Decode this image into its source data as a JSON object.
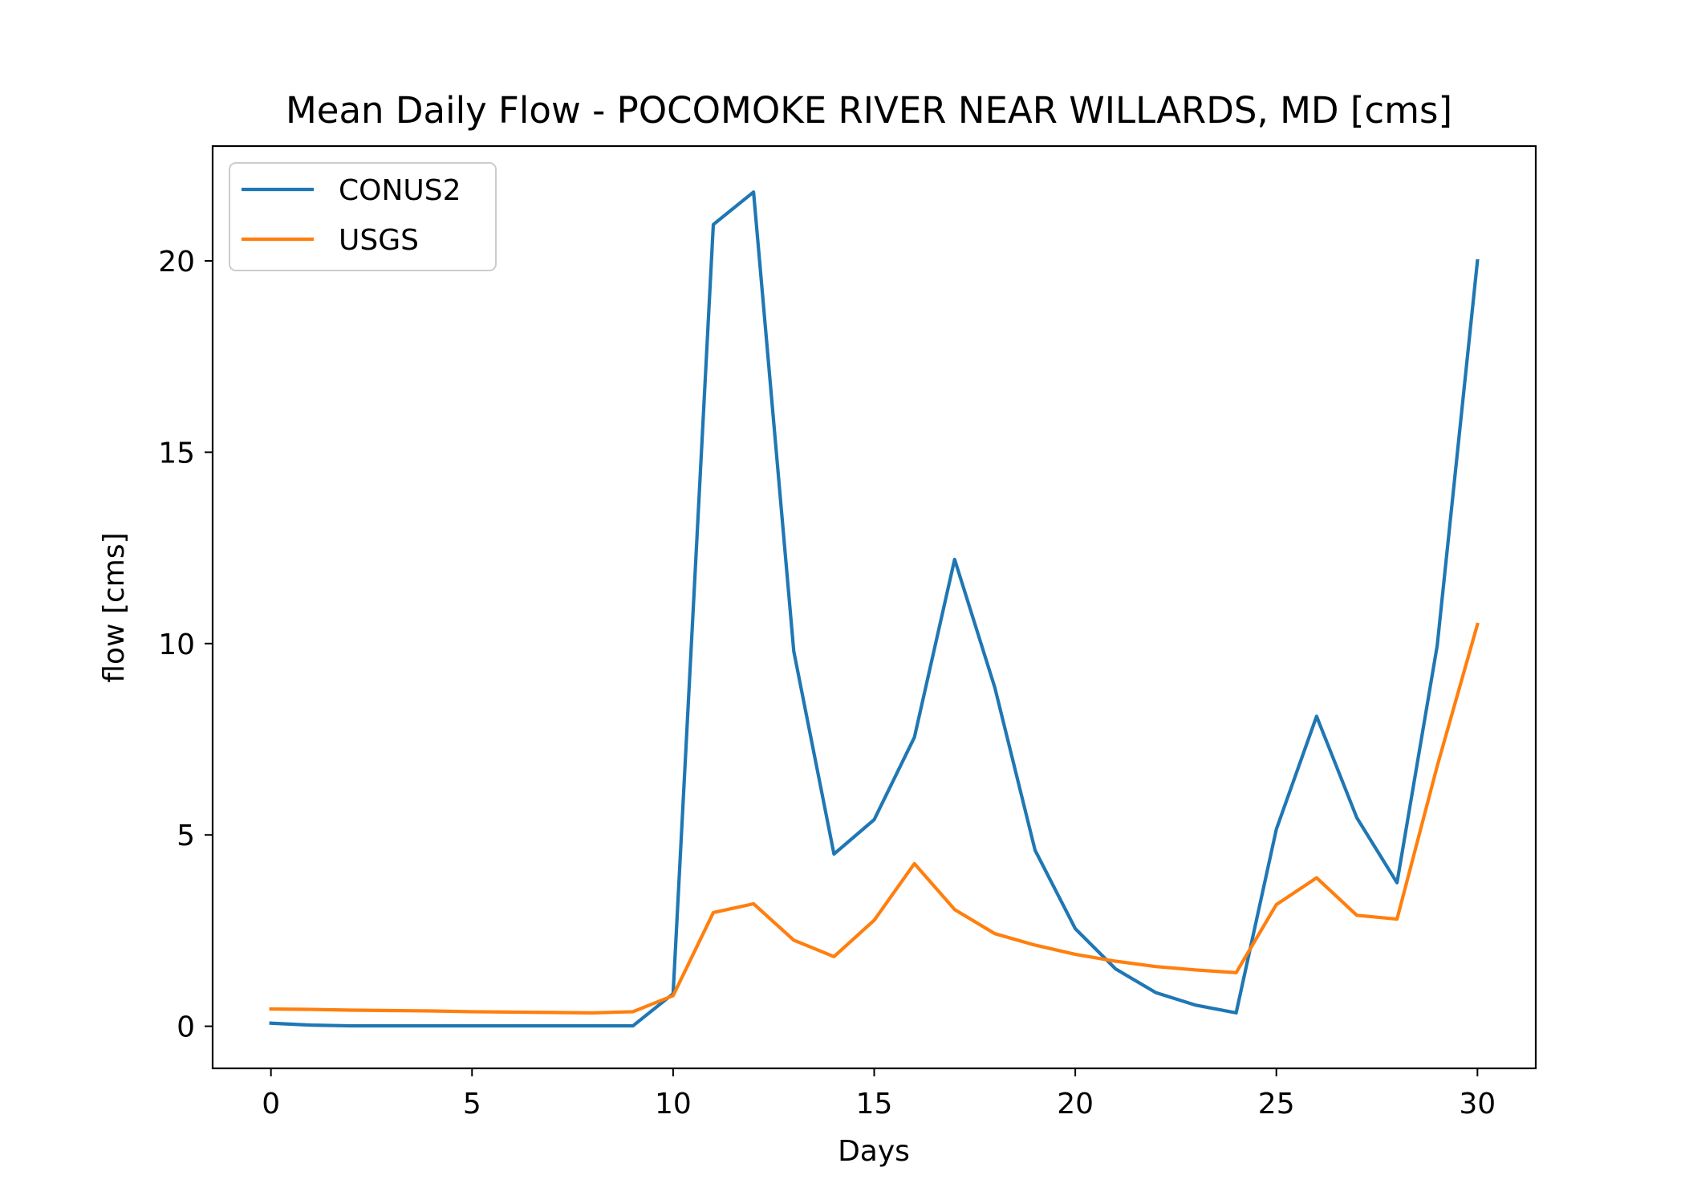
{
  "chart_data": {
    "type": "line",
    "title": "Mean Daily Flow - POCOMOKE RIVER NEAR WILLARDS, MD [cms]",
    "xlabel": "Days",
    "ylabel": "flow [cms]",
    "xlim": [
      -1.45,
      31.45
    ],
    "ylim": [
      -1.1,
      23.0
    ],
    "xticks": [
      0,
      5,
      10,
      15,
      20,
      25,
      30
    ],
    "yticks": [
      0,
      5,
      10,
      15,
      20
    ],
    "grid": false,
    "legend_position": "top-left",
    "x": [
      0,
      1,
      2,
      3,
      4,
      5,
      6,
      7,
      8,
      9,
      10,
      11,
      12,
      13,
      14,
      15,
      16,
      17,
      18,
      19,
      20,
      21,
      22,
      23,
      24,
      25,
      26,
      27,
      28,
      29,
      30
    ],
    "series": [
      {
        "name": "CONUS2",
        "color": "#1f77b4",
        "values": [
          0.08,
          0.03,
          0.01,
          0.01,
          0.01,
          0.01,
          0.01,
          0.01,
          0.01,
          0.01,
          0.85,
          20.95,
          21.8,
          9.8,
          4.5,
          5.4,
          7.55,
          12.2,
          8.85,
          4.6,
          2.55,
          1.5,
          0.88,
          0.55,
          0.35,
          5.15,
          8.1,
          5.45,
          3.75,
          9.95,
          20.0
        ]
      },
      {
        "name": "USGS",
        "color": "#ff7f0e",
        "values": [
          0.45,
          0.44,
          0.42,
          0.41,
          0.4,
          0.38,
          0.37,
          0.36,
          0.35,
          0.38,
          0.8,
          2.97,
          3.2,
          2.25,
          1.82,
          2.77,
          4.25,
          3.05,
          2.42,
          2.12,
          1.88,
          1.7,
          1.56,
          1.47,
          1.4,
          3.18,
          3.88,
          2.9,
          2.8,
          6.8,
          10.5
        ]
      }
    ]
  }
}
